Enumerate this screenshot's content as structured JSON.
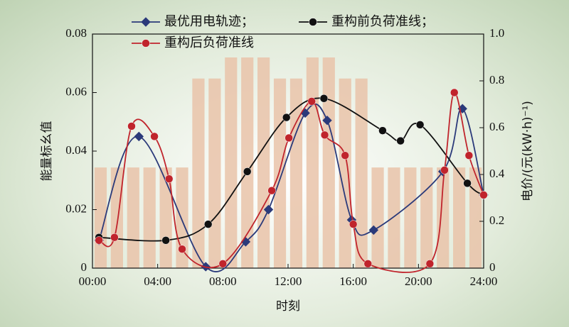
{
  "chart_data": {
    "type": "line",
    "xlabel": "时刻",
    "ylabel": "能量标幺值",
    "y2label": "电价/(元(kW·h)⁻¹)",
    "xlim": [
      0,
      24
    ],
    "xticks": [
      {
        "value": 0,
        "label": "00:00"
      },
      {
        "value": 4,
        "label": "04:00"
      },
      {
        "value": 8,
        "label": "08:00"
      },
      {
        "value": 12,
        "label": "12:00"
      },
      {
        "value": 16,
        "label": "16:00"
      },
      {
        "value": 20,
        "label": "20:00"
      },
      {
        "value": 24,
        "label": "24:00"
      }
    ],
    "ylim": [
      0,
      0.08
    ],
    "yticks": [
      0,
      0.02,
      0.04,
      0.06,
      0.08
    ],
    "y2lim": [
      0,
      1
    ],
    "y2ticks": [
      0,
      0.2,
      0.4,
      0.6,
      0.8,
      {
        "value": 1,
        "label": "1.0"
      }
    ],
    "bars": {
      "axis": "y2",
      "color": "#e9c3a9",
      "x": [
        0.5,
        1.5,
        2.5,
        3.5,
        4.5,
        5.5,
        6.5,
        7.5,
        8.5,
        9.5,
        10.5,
        11.5,
        12.5,
        13.5,
        14.5,
        15.5,
        16.5,
        17.5,
        18.5,
        19.5,
        20.5,
        21.5,
        22.5,
        23.5
      ],
      "values": [
        0.43,
        0.43,
        0.43,
        0.43,
        0.43,
        0.43,
        0.81,
        0.81,
        0.9,
        0.9,
        0.9,
        0.81,
        0.81,
        0.9,
        0.9,
        0.81,
        0.81,
        0.43,
        0.43,
        0.43,
        0.43,
        0.43,
        0.43,
        0.43
      ]
    },
    "series": [
      {
        "name": "最优用电轨迹；",
        "color": "#2b3a7a",
        "marker": "diamond",
        "x": [
          0.4,
          2.85,
          6.95,
          9.4,
          10.8,
          13.05,
          14.4,
          15.9,
          17.25,
          21.5,
          22.7,
          24
        ],
        "values": [
          0.0095,
          0.045,
          0.0005,
          0.009,
          0.02,
          0.053,
          0.0505,
          0.0165,
          0.013,
          0.033,
          0.0545,
          0.025
        ]
      },
      {
        "name": "重构前负荷准线；",
        "color": "#111111",
        "marker": "circle",
        "x": [
          0.4,
          4.5,
          7.1,
          9.5,
          11.9,
          14.2,
          17.8,
          18.9,
          20.1,
          23.0,
          24
        ],
        "values": [
          0.0105,
          0.0095,
          0.015,
          0.033,
          0.0515,
          0.058,
          0.047,
          0.0435,
          0.049,
          0.029,
          0.025
        ]
      },
      {
        "name": "重构后负荷准线",
        "color": "#c0242c",
        "marker": "circle",
        "x": [
          0.4,
          1.35,
          2.4,
          3.8,
          4.7,
          5.5,
          8.0,
          11.0,
          12.05,
          13.45,
          14.25,
          15.5,
          16.0,
          16.9,
          20.7,
          21.6,
          22.2,
          23.1,
          24
        ],
        "values": [
          0.0095,
          0.0105,
          0.0485,
          0.045,
          0.0305,
          0.0065,
          0.0015,
          0.0265,
          0.0445,
          0.057,
          0.0455,
          0.0385,
          0.015,
          0.0015,
          0.0015,
          0.0335,
          0.06,
          0.0385,
          0.025
        ]
      }
    ]
  }
}
